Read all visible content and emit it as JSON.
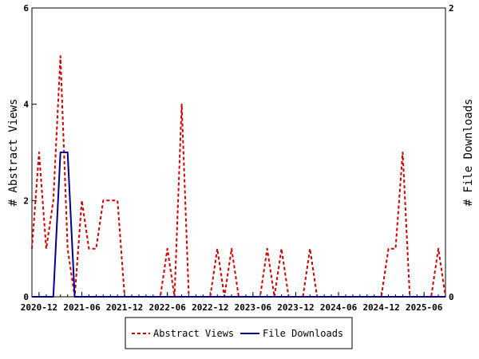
{
  "chart_data": {
    "type": "line",
    "title": "",
    "ylabel_left": "# Abstract Views",
    "ylabel_right": "# File Downloads",
    "ylim_left": [
      0,
      6
    ],
    "ylim_right": [
      0,
      2
    ],
    "yticks_left": [
      "0",
      "2",
      "4",
      "6"
    ],
    "yticks_right": [
      "0",
      "2"
    ],
    "xrange": [
      "2020-11",
      "2025-09"
    ],
    "xticks": [
      "2020-12",
      "2021-06",
      "2021-12",
      "2022-06",
      "2022-12",
      "2023-06",
      "2023-12",
      "2024-06",
      "2024-12",
      "2025-06"
    ],
    "grid": false,
    "legend_position": "bottom",
    "series": [
      {
        "name": "Abstract Views",
        "axis": "left",
        "color": "#cc0000",
        "style": "dashed",
        "x": [
          "2020-11",
          "2020-12",
          "2021-01",
          "2021-02",
          "2021-03",
          "2021-04",
          "2021-05",
          "2021-06",
          "2021-07",
          "2021-08",
          "2021-09",
          "2021-10",
          "2021-11",
          "2021-12",
          "2022-01",
          "2022-02",
          "2022-03",
          "2022-04",
          "2022-05",
          "2022-06",
          "2022-07",
          "2022-08",
          "2022-09",
          "2022-10",
          "2022-11",
          "2022-12",
          "2023-01",
          "2023-02",
          "2023-03",
          "2023-04",
          "2023-05",
          "2023-06",
          "2023-07",
          "2023-08",
          "2023-09",
          "2023-10",
          "2023-11",
          "2023-12",
          "2024-01",
          "2024-02",
          "2024-03",
          "2024-04",
          "2024-05",
          "2024-06",
          "2024-07",
          "2024-08",
          "2024-09",
          "2024-10",
          "2024-11",
          "2024-12",
          "2025-01",
          "2025-02",
          "2025-03",
          "2025-04",
          "2025-05",
          "2025-06",
          "2025-07",
          "2025-08",
          "2025-09"
        ],
        "values": [
          1,
          3,
          1,
          2,
          5,
          1,
          0,
          2,
          1,
          1,
          2,
          2,
          2,
          0,
          0,
          0,
          0,
          0,
          0,
          1,
          0,
          4,
          0,
          0,
          0,
          0,
          1,
          0,
          1,
          0,
          0,
          0,
          0,
          1,
          0,
          1,
          0,
          0,
          0,
          1,
          0,
          0,
          0,
          0,
          0,
          0,
          0,
          0,
          0,
          0,
          1,
          1,
          3,
          0,
          0,
          0,
          0,
          1,
          0
        ]
      },
      {
        "name": "File Downloads",
        "axis": "right",
        "color": "#00008b",
        "style": "solid",
        "x": [
          "2020-11",
          "2020-12",
          "2021-01",
          "2021-02",
          "2021-03",
          "2021-04",
          "2021-05",
          "2021-06",
          "2025-09"
        ],
        "values": [
          0,
          0,
          0,
          0,
          1,
          1,
          0,
          0,
          0
        ]
      }
    ]
  }
}
